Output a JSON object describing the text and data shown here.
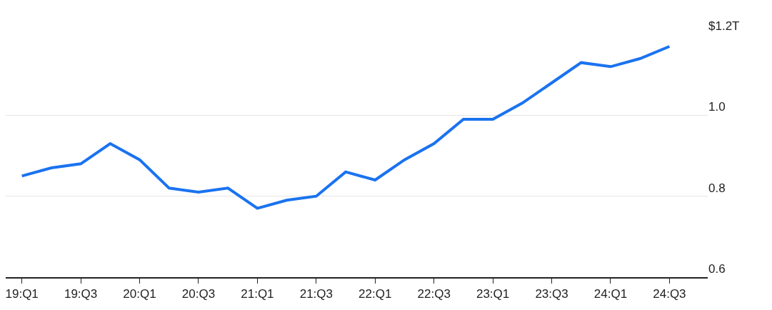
{
  "chart_data": {
    "type": "line",
    "categories": [
      "19:Q1",
      null,
      "19:Q3",
      null,
      "20:Q1",
      null,
      "20:Q3",
      null,
      "21:Q1",
      null,
      "21:Q3",
      null,
      "22:Q1",
      null,
      "22:Q3",
      null,
      "23:Q1",
      null,
      "23:Q3",
      null,
      "24:Q1",
      null,
      "24:Q3"
    ],
    "series": [
      {
        "color": "#1a73f0",
        "values": [
          0.85,
          0.87,
          0.88,
          0.93,
          0.89,
          0.82,
          0.81,
          0.82,
          0.77,
          0.79,
          0.8,
          0.86,
          0.84,
          0.89,
          0.93,
          0.99,
          0.99,
          1.03,
          1.08,
          1.13,
          1.12,
          1.14,
          1.17
        ]
      }
    ],
    "ylim": [
      0.6,
      1.2
    ],
    "yticks": [
      0.6,
      0.8,
      {
        "value": 1.0,
        "label": "1.0"
      },
      {
        "value": 1.2,
        "label": "$1.2T"
      }
    ],
    "grid": "y",
    "legend": false,
    "marker": "none",
    "line_style": "solid"
  }
}
